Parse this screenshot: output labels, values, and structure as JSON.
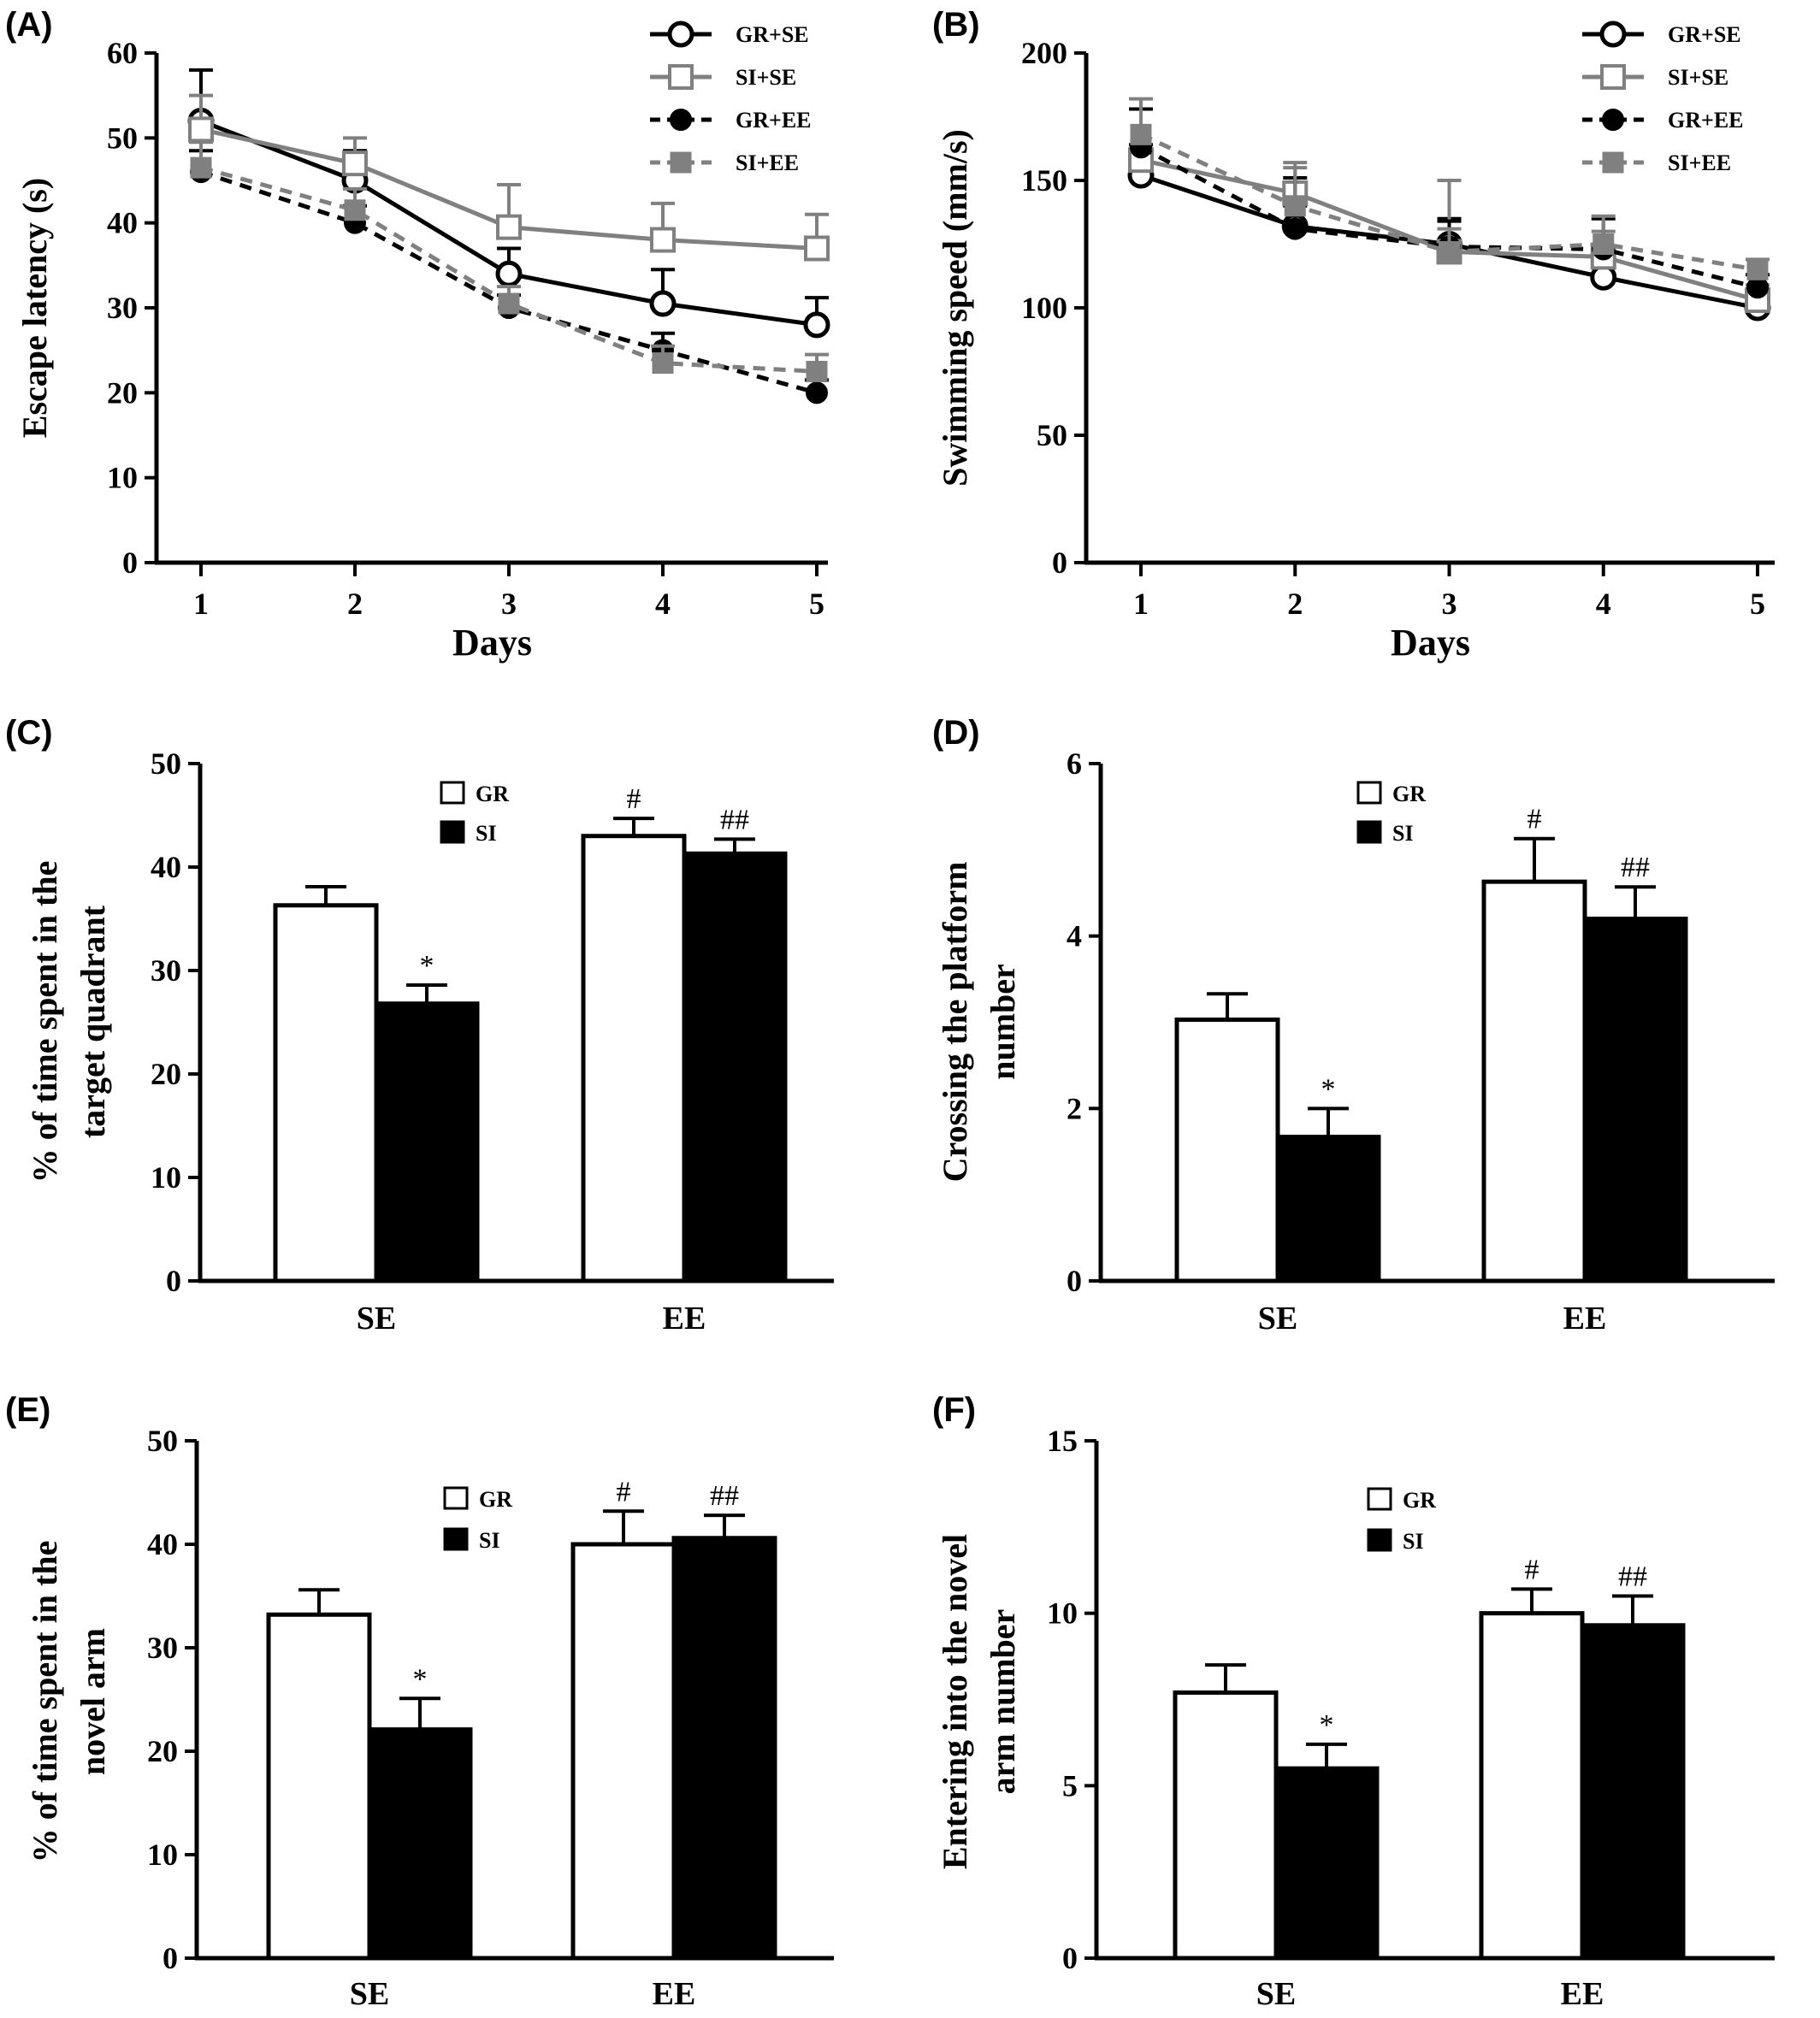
{
  "chart_data": [
    {
      "panel": "(A)",
      "type": "line",
      "xlabel": "Days",
      "ylabel": "Escape latency (s)",
      "x": [
        1,
        2,
        3,
        4,
        5
      ],
      "xticks": [
        "1",
        "2",
        "3",
        "4",
        "5"
      ],
      "ylim": [
        0,
        60
      ],
      "yticks": [
        "0",
        "10",
        "20",
        "30",
        "40",
        "50",
        "60"
      ],
      "legend_position": "top-right",
      "series": [
        {
          "name": "GR+SE",
          "values": [
            52,
            45,
            34,
            30.5,
            28
          ],
          "errors": [
            6,
            3.5,
            3,
            4,
            3.2
          ],
          "color": "#000000",
          "marker": "open-circle",
          "dash": "solid"
        },
        {
          "name": "SI+SE",
          "values": [
            51,
            47,
            39.5,
            38,
            37
          ],
          "errors": [
            4,
            3,
            5,
            4.3,
            4
          ],
          "color": "#808080",
          "marker": "open-square",
          "dash": "solid"
        },
        {
          "name": "GR+EE",
          "values": [
            46,
            40,
            30,
            25,
            20
          ],
          "errors": [
            2.5,
            2,
            1.5,
            2,
            1.5
          ],
          "color": "#000000",
          "marker": "filled-circle",
          "dash": "dashed"
        },
        {
          "name": "SI+EE",
          "values": [
            46.5,
            41.5,
            30.5,
            23.5,
            22.5
          ],
          "errors": [
            3,
            2.5,
            2,
            2,
            2
          ],
          "color": "#808080",
          "marker": "filled-square",
          "dash": "dashed"
        }
      ]
    },
    {
      "panel": "(B)",
      "type": "line",
      "xlabel": "Days",
      "ylabel": "Swimming speed (mm/s)",
      "x": [
        1,
        2,
        3,
        4,
        5
      ],
      "xticks": [
        "1",
        "2",
        "3",
        "4",
        "5"
      ],
      "ylim": [
        0,
        200
      ],
      "yticks": [
        "0",
        "50",
        "100",
        "150",
        "200"
      ],
      "legend_position": "top-right",
      "series": [
        {
          "name": "GR+SE",
          "values": [
            152,
            132,
            125,
            112,
            100
          ],
          "errors": [
            12,
            8,
            10,
            6,
            5
          ],
          "color": "#000000",
          "marker": "open-circle",
          "dash": "solid"
        },
        {
          "name": "SI+SE",
          "values": [
            158,
            145,
            122,
            120,
            103
          ],
          "errors": [
            20,
            12,
            28,
            10,
            6
          ],
          "color": "#808080",
          "marker": "open-square",
          "dash": "solid"
        },
        {
          "name": "GR+EE",
          "values": [
            163,
            131,
            124,
            123,
            108
          ],
          "errors": [
            15,
            20,
            10,
            12,
            5
          ],
          "color": "#000000",
          "marker": "filled-circle",
          "dash": "dashed"
        },
        {
          "name": "SI+EE",
          "values": [
            168,
            140,
            122,
            125,
            115
          ],
          "errors": [
            14,
            15,
            9,
            11,
            4
          ],
          "color": "#808080",
          "marker": "filled-square",
          "dash": "dashed"
        }
      ]
    },
    {
      "panel": "(C)",
      "type": "bar",
      "ylabel_lines": [
        "% of time spent in the",
        "target quadrant"
      ],
      "categories": [
        "SE",
        "EE"
      ],
      "ylim": [
        0,
        50
      ],
      "yticks": [
        "0",
        "10",
        "20",
        "30",
        "40",
        "50"
      ],
      "legend_position": "top-center",
      "series": [
        {
          "name": "GR",
          "values": [
            36.3,
            43
          ],
          "errors": [
            1.8,
            1.7
          ],
          "marks": [
            "",
            "#"
          ],
          "fill": "#ffffff"
        },
        {
          "name": "SI",
          "values": [
            26.8,
            41.3
          ],
          "errors": [
            1.8,
            1.4
          ],
          "marks": [
            "*",
            "##"
          ],
          "fill": "#000000"
        }
      ]
    },
    {
      "panel": "(D)",
      "type": "bar",
      "ylabel_lines": [
        "Crossing the platform",
        "number"
      ],
      "categories": [
        "SE",
        "EE"
      ],
      "ylim": [
        0,
        6
      ],
      "yticks": [
        "0",
        "2",
        "4",
        "6"
      ],
      "legend_position": "top-center",
      "series": [
        {
          "name": "GR",
          "values": [
            3.03,
            4.63
          ],
          "errors": [
            0.3,
            0.5
          ],
          "marks": [
            "",
            "#"
          ],
          "fill": "#ffffff"
        },
        {
          "name": "SI",
          "values": [
            1.67,
            4.2
          ],
          "errors": [
            0.33,
            0.37
          ],
          "marks": [
            "*",
            "##"
          ],
          "fill": "#000000"
        }
      ]
    },
    {
      "panel": "(E)",
      "type": "bar",
      "ylabel_lines": [
        "% of time spent in the",
        "novel arm"
      ],
      "categories": [
        "SE",
        "EE"
      ],
      "ylim": [
        0,
        50
      ],
      "yticks": [
        "0",
        "10",
        "20",
        "30",
        "40",
        "50"
      ],
      "legend_position": "top-center",
      "series": [
        {
          "name": "GR",
          "values": [
            33.2,
            40
          ],
          "errors": [
            2.4,
            3.2
          ],
          "marks": [
            "",
            "#"
          ],
          "fill": "#ffffff"
        },
        {
          "name": "SI",
          "values": [
            22.1,
            40.6
          ],
          "errors": [
            3,
            2.2
          ],
          "marks": [
            "*",
            "##"
          ],
          "fill": "#000000"
        }
      ]
    },
    {
      "panel": "(F)",
      "type": "bar",
      "ylabel_lines": [
        "Entering into the novel",
        "arm number"
      ],
      "categories": [
        "SE",
        "EE"
      ],
      "ylim": [
        0,
        15
      ],
      "yticks": [
        "0",
        "5",
        "10",
        "15"
      ],
      "legend_position": "top-center",
      "series": [
        {
          "name": "GR",
          "values": [
            7.7,
            10
          ],
          "errors": [
            0.8,
            0.7
          ],
          "marks": [
            "",
            "#"
          ],
          "fill": "#ffffff"
        },
        {
          "name": "SI",
          "values": [
            5.5,
            9.65
          ],
          "errors": [
            0.7,
            0.85
          ],
          "marks": [
            "*",
            "##"
          ],
          "fill": "#000000"
        }
      ]
    }
  ]
}
